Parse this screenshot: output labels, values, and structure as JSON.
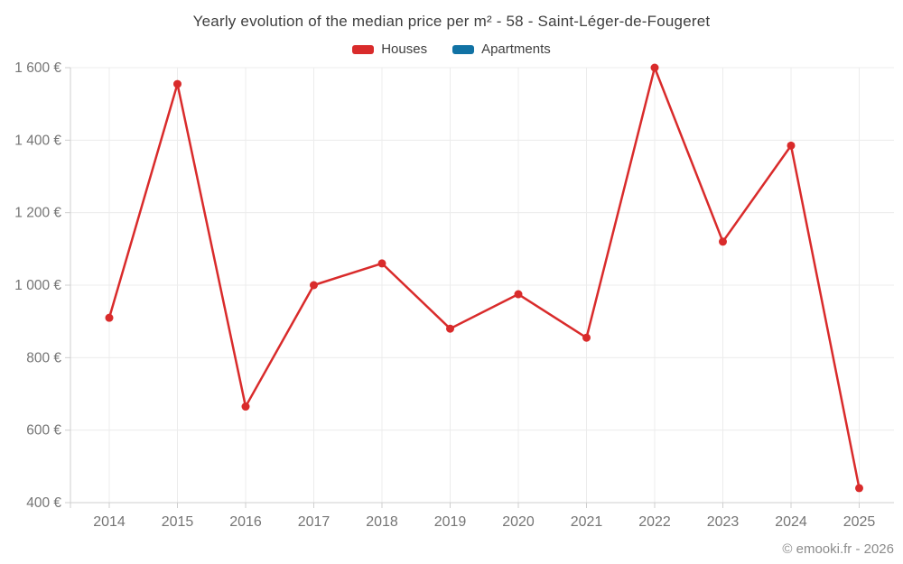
{
  "chart": {
    "title": "Yearly evolution of the median price per m² - 58 - Saint-Léger-de-Fougeret",
    "footer": "© emooki.fr - 2026"
  },
  "colors": {
    "houses": "#d92b2b",
    "apartments": "#1172a4",
    "gridline": "#ececec",
    "axis_line": "#cfcfcf",
    "tick_label": "#757575",
    "title_text": "#3f3f3f"
  },
  "chart_data": {
    "type": "line",
    "categories": [
      "2014",
      "2015",
      "2016",
      "2017",
      "2018",
      "2019",
      "2020",
      "2021",
      "2022",
      "2023",
      "2024",
      "2025"
    ],
    "series": [
      {
        "name": "Houses",
        "color": "#d92b2b",
        "values": [
          910,
          1555,
          665,
          1000,
          1060,
          880,
          975,
          855,
          1600,
          1120,
          1385,
          440
        ]
      },
      {
        "name": "Apartments",
        "color": "#1172a4",
        "values": []
      }
    ],
    "title": "Yearly evolution of the median price per m² - 58 - Saint-Léger-de-Fougeret",
    "xlabel": "",
    "ylabel": "",
    "ylim": [
      400,
      1600
    ],
    "y_tick_step": 200,
    "y_tick_labels": [
      "400 €",
      "600 €",
      "800 €",
      "1 000 €",
      "1 200 €",
      "1 400 €",
      "1 600 €"
    ],
    "grid": true,
    "legend_position": "top",
    "marker_radius": 4.5,
    "line_width": 2.5
  }
}
